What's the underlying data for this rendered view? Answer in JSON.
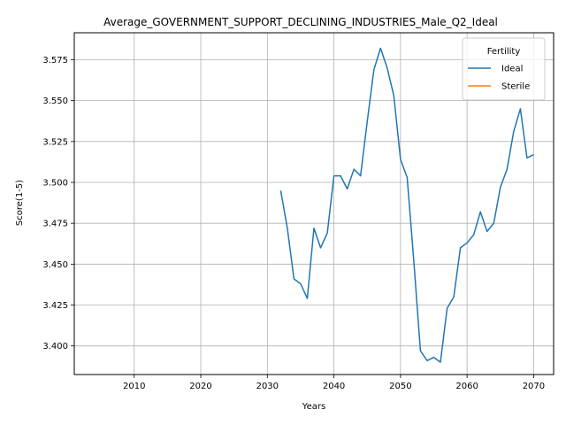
{
  "chart_data": {
    "type": "line",
    "title": "Average_GOVERNMENT_SUPPORT_DECLINING_INDUSTRIES_Male_Q2_Ideal",
    "xlabel": "Years",
    "ylabel": "Score(1-5)",
    "xlim": [
      2001,
      2073
    ],
    "ylim": [
      3.3825,
      3.5915
    ],
    "xticks": [
      "2010",
      "2020",
      "2030",
      "2040",
      "2050",
      "2060",
      "2070"
    ],
    "yticks": [
      "3.400",
      "3.425",
      "3.450",
      "3.475",
      "3.500",
      "3.525",
      "3.550",
      "3.575"
    ],
    "grid": true,
    "legend": {
      "title": "Fertility",
      "position": "top-right"
    },
    "series": [
      {
        "name": "Ideal",
        "color": "#1f77b4",
        "x": [
          2032,
          2033,
          2034,
          2035,
          2036,
          2037,
          2038,
          2039,
          2040,
          2041,
          2042,
          2043,
          2044,
          2045,
          2046,
          2047,
          2048,
          2049,
          2050,
          2051,
          2052,
          2053,
          2054,
          2055,
          2056,
          2057,
          2058,
          2059,
          2060,
          2061,
          2062,
          2063,
          2064,
          2065,
          2066,
          2067,
          2068,
          2069,
          2070
        ],
        "y": [
          3.495,
          3.472,
          3.441,
          3.438,
          3.429,
          3.472,
          3.46,
          3.469,
          3.504,
          3.504,
          3.496,
          3.508,
          3.504,
          3.537,
          3.569,
          3.582,
          3.57,
          3.553,
          3.514,
          3.503,
          3.452,
          3.397,
          3.391,
          3.393,
          3.39,
          3.423,
          3.43,
          3.46,
          3.463,
          3.468,
          3.482,
          3.47,
          3.475,
          3.497,
          3.508,
          3.531,
          3.545,
          3.515,
          3.517
        ]
      },
      {
        "name": "Sterile",
        "color": "#ff7f0e",
        "x": [],
        "y": []
      }
    ]
  }
}
